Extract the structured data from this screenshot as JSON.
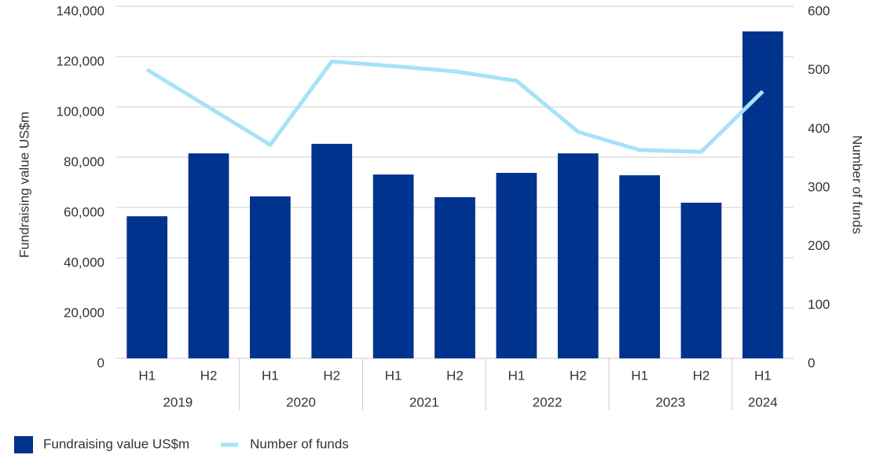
{
  "chart_data": {
    "type": "bar-line",
    "groups": [
      {
        "label": "2019",
        "categories": [
          "H1",
          "H2"
        ]
      },
      {
        "label": "2020",
        "categories": [
          "H1",
          "H2"
        ]
      },
      {
        "label": "2021",
        "categories": [
          "H1",
          "H2"
        ]
      },
      {
        "label": "2022",
        "categories": [
          "H1",
          "H2"
        ]
      },
      {
        "label": "2023",
        "categories": [
          "H1",
          "H2"
        ]
      },
      {
        "label": "2024",
        "categories": [
          "H1"
        ]
      }
    ],
    "series": [
      {
        "name": "Fundraising value US$m",
        "type": "bar",
        "color": "#00338d",
        "values": [
          56500,
          81500,
          64400,
          85300,
          73100,
          64100,
          73750,
          81500,
          72800,
          61900,
          130000
        ]
      },
      {
        "name": "Number of funds",
        "type": "line",
        "axis": "y2",
        "color": "#a6e2f8",
        "values": [
          492,
          428,
          364,
          506,
          498,
          489,
          473,
          386,
          355,
          352,
          455
        ]
      }
    ],
    "y_label": "Fundraising value US$m",
    "y2_label": "Number of funds",
    "ylim": [
      0,
      140000
    ],
    "yticks": [
      0,
      {
        "value": 20000,
        "label": "20,000"
      },
      {
        "value": 40000,
        "label": "40,000"
      },
      {
        "value": 60000,
        "label": "60,000"
      },
      {
        "value": 80000,
        "label": "80,000"
      },
      {
        "value": 100000,
        "label": "100,000"
      },
      {
        "value": 120000,
        "label": "120,000"
      },
      {
        "value": 140000,
        "label": "140,000"
      }
    ],
    "y2lim": [
      0,
      600
    ],
    "y2ticks": [
      0,
      100,
      200,
      300,
      400,
      500,
      600
    ],
    "grid": true,
    "legend": "bottom-left"
  }
}
